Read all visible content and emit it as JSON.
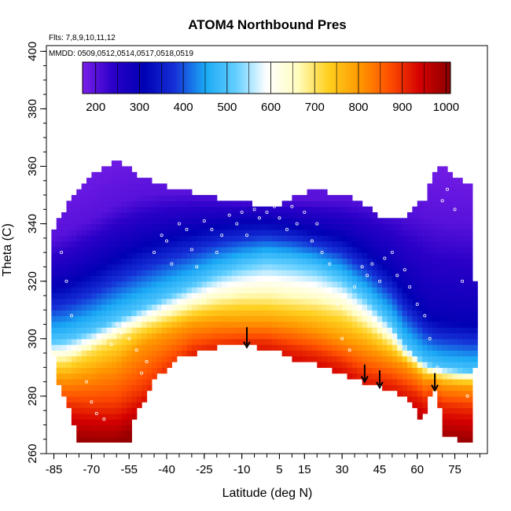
{
  "chart_data": {
    "type": "heatmap",
    "title": "ATOM4 Northbound Pres",
    "notes": [
      "Flts: 7,8,9,10,11,12",
      "MMDD: 0509,0512,0514,0517,0518,0519"
    ],
    "xlabel": "Latitude (deg N)",
    "ylabel": "Theta (C)",
    "xlim": [
      -88,
      88
    ],
    "ylim": [
      260,
      402
    ],
    "x_ticks": [
      -85,
      -70,
      -55,
      -40,
      -25,
      -10,
      5,
      15,
      30,
      45,
      60,
      75
    ],
    "x_tick_labels": [
      "-85",
      "-70",
      "-55",
      "-40",
      "-25",
      "-10",
      "5",
      "15",
      "30",
      "45",
      "60",
      "75"
    ],
    "y_ticks": [
      260,
      280,
      300,
      320,
      340,
      360,
      380,
      400
    ],
    "y_tick_labels": [
      "260",
      "280",
      "300",
      "320",
      "340",
      "360",
      "380",
      "400"
    ],
    "colorbar": {
      "ticks": [
        200,
        300,
        400,
        500,
        600,
        700,
        800,
        900,
        1000
      ],
      "tick_labels": [
        "200",
        "300",
        "400",
        "500",
        "600",
        "700",
        "800",
        "900",
        "1000"
      ],
      "range": [
        170,
        1010
      ],
      "colors": [
        "#7a1fe8",
        "#2a00c8",
        "#0000b4",
        "#1530d6",
        "#1aa8f5",
        "#63cfff",
        "#ffffff",
        "#fffdc0",
        "#ffd020",
        "#ff9a00",
        "#ff5000",
        "#d40000",
        "#8b0000"
      ]
    },
    "coverage": {
      "latitude": [
        -86,
        -85,
        -84,
        -80,
        -77,
        -75,
        -73,
        -70,
        -65,
        -60,
        -55,
        -54,
        -52,
        -48,
        -45,
        -40,
        -35,
        -30,
        -25,
        -20,
        -15,
        -10,
        -5,
        0,
        5,
        10,
        15,
        20,
        25,
        30,
        35,
        40,
        45,
        50,
        55,
        58,
        60,
        62,
        63,
        64,
        66,
        68,
        70,
        75,
        80,
        82,
        83
      ],
      "theta_bottom": [
        303,
        295,
        288,
        279,
        270,
        265,
        265,
        265,
        265,
        265,
        265,
        270,
        275,
        281,
        287,
        290,
        294,
        295,
        297,
        298,
        299,
        299,
        298,
        297,
        296,
        294,
        293,
        292,
        290,
        289,
        287,
        285,
        284,
        283,
        281,
        278,
        275,
        270,
        275,
        278,
        282,
        285,
        268,
        266,
        265,
        265,
        290
      ],
      "theta_top": [
        330,
        338,
        340,
        345,
        350,
        352,
        354,
        356,
        359,
        361,
        359,
        357,
        356,
        355,
        353,
        352,
        351,
        350,
        349,
        348,
        347,
        347,
        346,
        346,
        346,
        348,
        350,
        351,
        350,
        350,
        348,
        345,
        342,
        340,
        342,
        344,
        346,
        348,
        348,
        350,
        355,
        358,
        360,
        356,
        353,
        352,
        320
      ]
    },
    "profile": {
      "latitude": [
        -88,
        -80,
        -70,
        -60,
        -50,
        -40,
        -30,
        -20,
        -10,
        0,
        10,
        20,
        30,
        40,
        50,
        55,
        60,
        63,
        66,
        70,
        80,
        88
      ],
      "theta_900": [
        279,
        277,
        276,
        276,
        281,
        289,
        296,
        298,
        299,
        299,
        297,
        295,
        292,
        287,
        285,
        283,
        281,
        279,
        280,
        277,
        276,
        276
      ],
      "theta_800": [
        287,
        286,
        288,
        291,
        298,
        302,
        305,
        306,
        306,
        306,
        305,
        303,
        300,
        297,
        293,
        291,
        288,
        286,
        286,
        284,
        283,
        283
      ],
      "theta_700": [
        292,
        292,
        296,
        300,
        304,
        307,
        310,
        312,
        313,
        313,
        312,
        311,
        309,
        304,
        298,
        294,
        291,
        289,
        288,
        287,
        286,
        286
      ],
      "theta_500": [
        299,
        300,
        303,
        307,
        311,
        315,
        319,
        323,
        326,
        328,
        327,
        325,
        321,
        314,
        305,
        298,
        294,
        292,
        291,
        290,
        289,
        289
      ],
      "theta_300": [
        318,
        320,
        324,
        329,
        333,
        336,
        338,
        340,
        341,
        341,
        340,
        338,
        336,
        331,
        324,
        318,
        313,
        310,
        308,
        307,
        306,
        306
      ],
      "theta_200": [
        334,
        337,
        342,
        347,
        350,
        351,
        351,
        350,
        349,
        349,
        349,
        349,
        349,
        348,
        346,
        345,
        344,
        343,
        342,
        341,
        340,
        340
      ]
    },
    "arrows": [
      {
        "latitude": -8,
        "theta_top": 304,
        "theta_bottom": 297
      },
      {
        "latitude": 39,
        "theta_top": 291,
        "theta_bottom": 285
      },
      {
        "latitude": 45,
        "theta_top": 289,
        "theta_bottom": 283
      },
      {
        "latitude": 67,
        "theta_top": 288,
        "theta_bottom": 282
      }
    ],
    "observations": {
      "latitude": [
        -82,
        -80,
        -78,
        -75,
        -72,
        -70,
        -68,
        -65,
        -62,
        -60,
        -58,
        -55,
        -52,
        -50,
        -48,
        -45,
        -42,
        -40,
        -38,
        -35,
        -32,
        -30,
        -28,
        -25,
        -22,
        -20,
        -18,
        -15,
        -12,
        -10,
        -8,
        -5,
        -3,
        0,
        3,
        5,
        8,
        10,
        12,
        15,
        18,
        20,
        22,
        25,
        28,
        30,
        33,
        35,
        38,
        40,
        42,
        45,
        47,
        50,
        52,
        55,
        57,
        60,
        63,
        65,
        68,
        70,
        72,
        75,
        78,
        80
      ],
      "theta": [
        330,
        320,
        308,
        296,
        285,
        278,
        274,
        272,
        298,
        305,
        302,
        300,
        296,
        288,
        292,
        330,
        336,
        334,
        326,
        340,
        338,
        331,
        325,
        341,
        338,
        330,
        336,
        343,
        340,
        344,
        336,
        345,
        342,
        344,
        346,
        342,
        338,
        346,
        340,
        344,
        334,
        340,
        330,
        326,
        312,
        300,
        296,
        318,
        325,
        322,
        326,
        320,
        328,
        330,
        322,
        324,
        318,
        312,
        308,
        300,
        290,
        348,
        352,
        345,
        320,
        280
      ]
    }
  }
}
